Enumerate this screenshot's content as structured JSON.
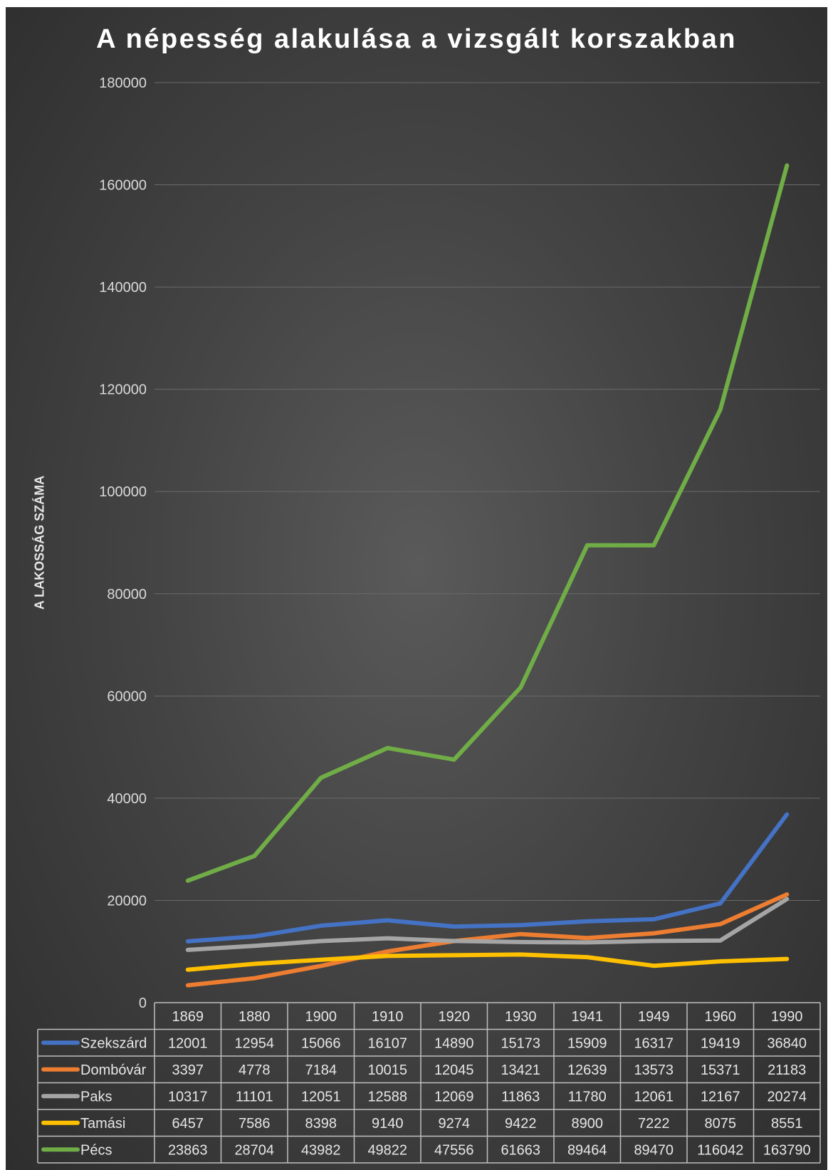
{
  "chart_data": {
    "type": "line",
    "title": "A népesség alakulása a vizsgált korszakban",
    "xlabel": "",
    "ylabel": "A LAKOSSÁG SZÁMA",
    "ylim": [
      0,
      180000
    ],
    "yticks": [
      "0",
      "20000",
      "40000",
      "60000",
      "80000",
      "100000",
      "120000",
      "140000",
      "160000",
      "180000"
    ],
    "grid": true,
    "legend": "data-table",
    "categories": [
      "1869",
      "1880",
      "1900",
      "1910",
      "1920",
      "1930",
      "1941",
      "1949",
      "1960",
      "1990"
    ],
    "series": [
      {
        "name": "Szekszárd",
        "color": "#4472c4",
        "values": [
          12001,
          12954,
          15066,
          16107,
          14890,
          15173,
          15909,
          16317,
          19419,
          36840
        ]
      },
      {
        "name": "Dombóvár",
        "color": "#ed7d31",
        "values": [
          3397,
          4778,
          7184,
          10015,
          12045,
          13421,
          12639,
          13573,
          15371,
          21183
        ]
      },
      {
        "name": "Paks",
        "color": "#a5a5a5",
        "values": [
          10317,
          11101,
          12051,
          12588,
          12069,
          11863,
          11780,
          12061,
          12167,
          20274
        ]
      },
      {
        "name": "Tamási",
        "color": "#ffc000",
        "values": [
          6457,
          7586,
          8398,
          9140,
          9274,
          9422,
          8900,
          7222,
          8075,
          8551
        ]
      },
      {
        "name": "Pécs",
        "color": "#70ad47",
        "values": [
          23863,
          28704,
          43982,
          49822,
          47556,
          61663,
          89464,
          89470,
          116042,
          163790
        ]
      }
    ]
  }
}
